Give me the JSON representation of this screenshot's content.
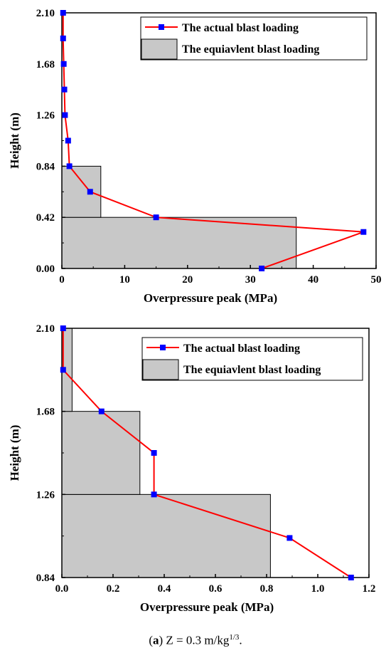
{
  "caption": {
    "prefix": "(",
    "letter": "a",
    "middle": ") Z = 0.3 m/kg",
    "superscript": "1/3",
    "suffix": "."
  },
  "chart_data": [
    {
      "type": "line",
      "xlabel": "Overpressure peak (MPa)",
      "ylabel": "Height (m)",
      "xlim": [
        0,
        50
      ],
      "ylim": [
        0,
        2.1
      ],
      "xticks": [
        "0",
        "10",
        "20",
        "30",
        "40",
        "50"
      ],
      "yticks": [
        "0.00",
        "0.42",
        "0.84",
        "1.26",
        "1.68",
        "2.10"
      ],
      "legend_position": "top-right",
      "colors": {
        "line": "#ff0000",
        "marker": "#0000ff",
        "bar": "#c8c8c8"
      },
      "series": [
        {
          "name": "The actual blast loading",
          "kind": "line",
          "points": [
            {
              "x": 31.8,
              "y": 0.0
            },
            {
              "x": 48.0,
              "y": 0.3
            },
            {
              "x": 15.0,
              "y": 0.42
            },
            {
              "x": 4.5,
              "y": 0.63
            },
            {
              "x": 1.2,
              "y": 0.84
            },
            {
              "x": 1.0,
              "y": 1.05
            },
            {
              "x": 0.5,
              "y": 1.26
            },
            {
              "x": 0.4,
              "y": 1.47
            },
            {
              "x": 0.3,
              "y": 1.68
            },
            {
              "x": 0.2,
              "y": 1.89
            },
            {
              "x": 0.2,
              "y": 2.1
            }
          ]
        },
        {
          "name": "The equiavlent blast loading",
          "kind": "step-bars",
          "bars": [
            {
              "y0": 0.0,
              "y1": 0.42,
              "x": 37.3
            },
            {
              "y0": 0.42,
              "y1": 0.84,
              "x": 6.2
            }
          ]
        }
      ]
    },
    {
      "type": "line",
      "xlabel": "Overpressure peak (MPa)",
      "ylabel": "Height (m)",
      "xlim": [
        0,
        1.2
      ],
      "ylim": [
        0.84,
        2.1
      ],
      "xticks": [
        "0.0",
        "0.2",
        "0.4",
        "0.6",
        "0.8",
        "1.0",
        "1.2"
      ],
      "yticks": [
        "0.84",
        "1.26",
        "1.68",
        "2.10"
      ],
      "legend_position": "top-right",
      "colors": {
        "line": "#ff0000",
        "marker": "#0000ff",
        "bar": "#c8c8c8"
      },
      "series": [
        {
          "name": "The actual blast loading",
          "kind": "line",
          "points": [
            {
              "x": 1.13,
              "y": 0.84
            },
            {
              "x": 0.89,
              "y": 1.04
            },
            {
              "x": 0.36,
              "y": 1.26
            },
            {
              "x": 0.36,
              "y": 1.47
            },
            {
              "x": 0.155,
              "y": 1.68
            },
            {
              "x": 0.005,
              "y": 1.89
            },
            {
              "x": 0.005,
              "y": 2.1
            }
          ]
        },
        {
          "name": "The equiavlent blast loading",
          "kind": "step-bars",
          "bars": [
            {
              "y0": 0.84,
              "y1": 1.26,
              "x": 0.815
            },
            {
              "y0": 1.26,
              "y1": 1.68,
              "x": 0.305
            },
            {
              "y0": 1.68,
              "y1": 2.1,
              "x": 0.04
            }
          ]
        }
      ]
    }
  ]
}
